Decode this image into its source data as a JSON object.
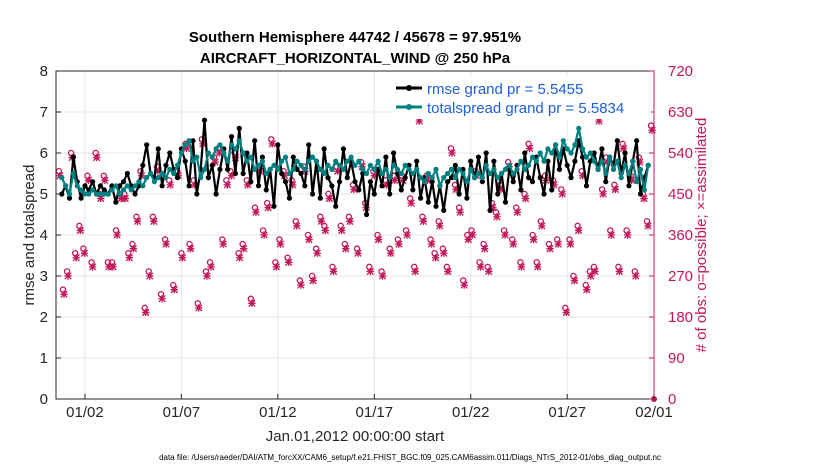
{
  "chart_data": {
    "type": "line",
    "title_line1": "Southern Hemisphere 44742 / 45678 = 97.951%",
    "title_line2": "AIRCRAFT_HORIZONTAL_WIND @ 250 hPa",
    "ylabel": "rmse and totalspread",
    "ylabel_right": "# of obs: o=possible; ×=assimilated",
    "xlabel": "Jan.01,2012 00:00:00 start",
    "footer": "data file: /Users/raeder/DAI/ATM_forcXX/CAM6_setup/f.e21.FHIST_BGC.f09_025.CAM6assim.011/Diags_NTrS_2012-01/obs_diag_output.nc",
    "xlim": [
      0.5,
      31.5
    ],
    "ylim": [
      0,
      8
    ],
    "ylim_right": [
      0,
      720
    ],
    "xticks": [
      2,
      7,
      12,
      17,
      22,
      27,
      32
    ],
    "xtick_labels": [
      "01/02",
      "01/07",
      "01/12",
      "01/17",
      "01/22",
      "01/27",
      "02/01"
    ],
    "yticks": [
      "0",
      "1",
      "2",
      "3",
      "4",
      "5",
      "6",
      "7",
      "8"
    ],
    "yticks_right": [
      "0",
      "90",
      "180",
      "270",
      "360",
      "450",
      "540",
      "630",
      "720"
    ],
    "colors": {
      "rmse": "#000000",
      "spread": "#008080",
      "obs": "#c2185b",
      "legend_text": "#1f5fd6"
    },
    "series": [
      {
        "name": "rmse grand pr = 5.5455",
        "values": [
          5.0,
          5.2,
          4.9,
          5.9,
          5.3,
          4.9,
          5.2,
          5.1,
          5.3,
          5.0,
          5.2,
          5.1,
          5.0,
          5.2,
          4.8,
          5.2,
          5.3,
          5.5,
          5.2,
          5.0,
          5.2,
          5.7,
          6.2,
          5.5,
          5.4,
          6.1,
          5.2,
          5.7,
          6.0,
          5.6,
          5.4,
          6.1,
          5.8,
          5.2,
          6.3,
          5.0,
          5.6,
          6.8,
          5.4,
          5.7,
          5.0,
          5.6,
          6.1,
          5.6,
          6.4,
          5.5,
          6.6,
          5.5,
          6.0,
          5.3,
          6.3,
          5.2,
          5.9,
          5.1,
          5.6,
          4.7,
          6.2,
          5.5,
          5.3,
          4.9,
          5.9,
          5.6,
          5.5,
          5.2,
          6.2,
          5.0,
          5.8,
          4.9,
          6.1,
          5.4,
          5.2,
          4.7,
          5.3,
          6.1,
          5.4,
          5.8,
          5.3,
          5.1,
          5.5,
          4.5,
          5.3,
          5.0,
          5.6,
          5.2,
          5.9,
          5.0,
          6.0,
          5.5,
          5.1,
          5.4,
          5.7,
          5.1,
          5.8,
          4.9,
          5.4,
          4.8,
          5.3,
          4.7,
          5.2,
          4.6,
          5.3,
          5.4,
          5.7,
          5.0,
          5.6,
          4.9,
          5.8,
          5.4,
          5.9,
          5.3,
          6.0,
          4.6,
          5.8,
          5.0,
          5.5,
          4.8,
          5.6,
          5.3,
          5.7,
          5.1,
          6.0,
          5.4,
          5.3,
          5.9,
          5.4,
          5.0,
          5.8,
          5.1,
          6.2,
          5.6,
          6.1,
          5.7,
          5.4,
          5.8,
          6.3,
          5.9,
          5.2,
          5.8,
          6.0,
          5.6,
          6.1,
          5.3,
          5.9,
          5.7,
          6.3,
          5.5,
          6.0,
          5.2,
          5.8,
          6.3,
          5.0,
          5.4,
          5.7
        ],
        "markers": [
          5.0,
          5.2,
          4.9,
          5.9,
          5.3,
          4.9,
          5.2,
          5.1,
          5.3,
          5.0,
          5.2,
          5.1,
          5.0,
          5.2,
          4.8,
          5.2,
          5.3,
          5.5,
          5.2,
          5.0,
          5.2,
          5.7,
          6.2,
          5.5,
          5.4,
          6.1,
          5.2,
          5.7,
          6.0,
          5.6,
          5.4,
          6.1,
          5.8,
          5.2,
          6.3,
          5.0,
          5.6,
          6.8,
          5.4,
          5.7,
          5.0,
          5.6,
          6.1,
          5.6,
          6.4,
          5.5,
          6.6,
          5.5,
          6.0,
          5.3,
          6.3,
          5.2,
          5.9,
          5.1,
          5.6,
          4.7,
          6.2,
          5.5,
          5.3,
          4.9,
          5.9,
          5.6,
          5.5,
          5.2,
          6.2,
          5.0,
          5.8,
          4.9,
          6.1,
          5.4,
          5.2,
          4.7,
          5.3,
          6.1,
          5.4,
          5.8,
          5.3,
          5.1,
          5.5,
          4.5,
          5.3,
          5.0,
          5.6,
          5.2,
          5.9,
          5.0,
          6.0,
          5.5,
          5.1,
          5.4,
          5.7,
          5.1,
          5.8,
          4.9,
          5.4,
          4.8,
          5.3,
          4.7,
          5.2,
          4.6,
          5.3,
          5.4,
          5.7,
          5.0,
          5.6,
          4.9,
          5.8,
          5.4,
          5.9,
          5.3,
          6.0,
          4.6,
          5.8,
          5.0,
          5.5,
          4.8,
          5.6,
          5.3,
          5.7,
          5.1,
          6.0,
          5.4,
          5.3,
          5.9,
          5.4,
          5.0,
          5.8,
          5.1,
          6.2,
          5.6,
          6.1,
          5.7,
          5.4,
          5.8,
          6.3,
          5.9,
          5.2,
          5.8,
          6.0,
          5.6,
          6.1,
          5.3,
          5.9,
          5.7,
          6.3,
          5.5,
          6.0,
          5.2,
          5.8,
          6.3,
          5.0,
          5.4,
          5.7
        ]
      },
      {
        "name": "totalspread grand pr = 5.5834",
        "values": [
          5.4,
          5.2,
          5.0,
          5.5,
          5.2,
          5.1,
          5.0,
          5.0,
          5.1,
          5.0,
          5.0,
          5.0,
          5.0,
          5.1,
          5.2,
          5.0,
          5.1,
          5.2,
          5.1,
          5.2,
          5.3,
          5.2,
          5.4,
          5.5,
          5.3,
          5.4,
          5.5,
          5.4,
          5.6,
          5.5,
          5.7,
          6.0,
          6.2,
          6.3,
          5.8,
          5.9,
          5.4,
          5.6,
          6.0,
          5.9,
          6.1,
          6.2,
          6.0,
          5.8,
          6.2,
          6.1,
          6.3,
          6.0,
          5.8,
          5.9,
          5.6,
          5.7,
          5.8,
          5.5,
          5.6,
          5.7,
          5.6,
          5.8,
          5.9,
          5.5,
          5.6,
          5.8,
          5.7,
          5.6,
          5.8,
          5.9,
          5.8,
          5.6,
          5.5,
          5.7,
          5.6,
          5.8,
          5.7,
          5.6,
          5.8,
          5.9,
          5.7,
          5.8,
          5.6,
          5.5,
          5.7,
          5.6,
          5.8,
          5.5,
          5.6,
          5.4,
          5.7,
          5.6,
          5.5,
          5.7,
          5.6,
          5.5,
          5.6,
          5.4,
          5.3,
          5.5,
          5.4,
          5.6,
          5.2,
          5.4,
          5.5,
          5.6,
          5.4,
          5.6,
          5.5,
          5.3,
          5.6,
          5.4,
          5.5,
          5.4,
          5.7,
          5.5,
          5.6,
          5.4,
          5.5,
          5.6,
          5.7,
          5.5,
          5.6,
          5.8,
          5.6,
          5.7,
          5.9,
          5.8,
          6.0,
          5.8,
          6.1,
          6.0,
          6.2,
          5.9,
          6.3,
          6.1,
          6.0,
          6.2,
          6.6,
          6.1,
          5.9,
          6.0,
          5.8,
          5.6,
          5.8,
          5.5,
          5.9,
          5.6,
          5.8,
          5.4,
          5.7,
          5.5,
          5.8,
          5.3,
          5.6,
          5.1,
          5.7
        ],
        "markers": [
          5.4,
          5.2,
          5.0,
          5.5,
          5.2,
          5.1,
          5.0,
          5.0,
          5.1,
          5.0,
          5.0,
          5.0,
          5.0,
          5.1,
          5.2,
          5.0,
          5.1,
          5.2,
          5.1,
          5.2,
          5.3,
          5.2,
          5.4,
          5.5,
          5.3,
          5.4,
          5.5,
          5.4,
          5.6,
          5.5,
          5.7,
          6.0,
          6.2,
          6.3,
          5.8,
          5.9,
          5.4,
          5.6,
          6.0,
          5.9,
          6.1,
          6.2,
          6.0,
          5.8,
          6.2,
          6.1,
          6.3,
          6.0,
          5.8,
          5.9,
          5.6,
          5.7,
          5.8,
          5.5,
          5.6,
          5.7,
          5.6,
          5.8,
          5.9,
          5.5,
          5.6,
          5.8,
          5.7,
          5.6,
          5.8,
          5.9,
          5.8,
          5.6,
          5.5,
          5.7,
          5.6,
          5.8,
          5.7,
          5.6,
          5.8,
          5.9,
          5.7,
          5.8,
          5.6,
          5.5,
          5.7,
          5.6,
          5.8,
          5.5,
          5.6,
          5.4,
          5.7,
          5.6,
          5.5,
          5.7,
          5.6,
          5.5,
          5.6,
          5.4,
          5.3,
          5.5,
          5.4,
          5.6,
          5.2,
          5.4,
          5.5,
          5.6,
          5.4,
          5.6,
          5.5,
          5.3,
          5.6,
          5.4,
          5.5,
          5.4,
          5.7,
          5.5,
          5.6,
          5.4,
          5.5,
          5.6,
          5.7,
          5.5,
          5.6,
          5.8,
          5.6,
          5.7,
          5.9,
          5.8,
          6.0,
          5.8,
          6.1,
          6.0,
          6.2,
          5.9,
          6.3,
          6.1,
          6.0,
          6.2,
          6.6,
          6.1,
          5.9,
          6.0,
          5.8,
          5.6,
          5.8,
          5.5,
          5.9,
          5.6,
          5.8,
          5.4,
          5.7,
          5.5,
          5.8,
          5.3,
          5.6,
          5.1,
          5.7
        ]
      },
      {
        "name": "# of obs possible",
        "axis": "right",
        "marker": "o",
        "values": [
          500,
          240,
          280,
          540,
          320,
          380,
          330,
          490,
          300,
          540,
          450,
          490,
          300,
          300,
          370,
          450,
          450,
          320,
          340,
          400,
          500,
          200,
          280,
          400,
          510,
          230,
          350,
          480,
          250,
          500,
          320,
          560,
          340,
          480,
          210,
          570,
          280,
          300,
          530,
          550,
          350,
          480,
          500,
          540,
          320,
          340,
          480,
          220,
          420,
          510,
          370,
          430,
          570,
          300,
          350,
          500,
          310,
          480,
          390,
          260,
          510,
          360,
          270,
          330,
          400,
          380,
          450,
          290,
          510,
          380,
          340,
          400,
          470,
          330,
          520,
          430,
          290,
          500,
          360,
          280,
          480,
          330,
          490,
          350,
          490,
          370,
          440,
          290,
          620,
          400,
          490,
          350,
          320,
          390,
          330,
          290,
          550,
          470,
          420,
          260,
          360,
          370,
          500,
          300,
          340,
          290,
          430,
          410,
          470,
          370,
          520,
          350,
          420,
          300,
          450,
          560,
          360,
          300,
          390,
          490,
          340,
          480,
          350,
          460,
          200,
          350,
          270,
          380,
          500,
          250,
          280,
          290,
          620,
          460,
          530,
          370,
          470,
          290,
          560,
          370,
          490,
          280,
          530,
          450,
          390,
          600
        ]
      },
      {
        "name": "# of obs assimilated",
        "axis": "right",
        "marker": "x",
        "values": [
          490,
          230,
          270,
          530,
          310,
          370,
          320,
          480,
          290,
          530,
          440,
          480,
          290,
          290,
          360,
          440,
          440,
          310,
          330,
          390,
          490,
          190,
          270,
          390,
          500,
          220,
          340,
          470,
          240,
          490,
          310,
          550,
          330,
          470,
          200,
          560,
          270,
          290,
          520,
          540,
          340,
          470,
          490,
          530,
          310,
          330,
          470,
          210,
          410,
          500,
          360,
          420,
          560,
          290,
          340,
          490,
          300,
          470,
          380,
          250,
          500,
          350,
          260,
          320,
          390,
          370,
          440,
          280,
          500,
          370,
          330,
          390,
          460,
          320,
          510,
          420,
          280,
          490,
          350,
          270,
          470,
          320,
          480,
          340,
          480,
          360,
          430,
          280,
          610,
          390,
          480,
          340,
          310,
          380,
          320,
          280,
          540,
          460,
          410,
          250,
          350,
          360,
          490,
          290,
          330,
          280,
          420,
          400,
          460,
          360,
          510,
          340,
          410,
          290,
          440,
          550,
          350,
          290,
          380,
          480,
          330,
          470,
          340,
          450,
          190,
          340,
          260,
          370,
          490,
          240,
          270,
          280,
          610,
          450,
          520,
          360,
          460,
          280,
          550,
          360,
          480,
          270,
          520,
          440,
          380,
          590
        ]
      }
    ]
  }
}
